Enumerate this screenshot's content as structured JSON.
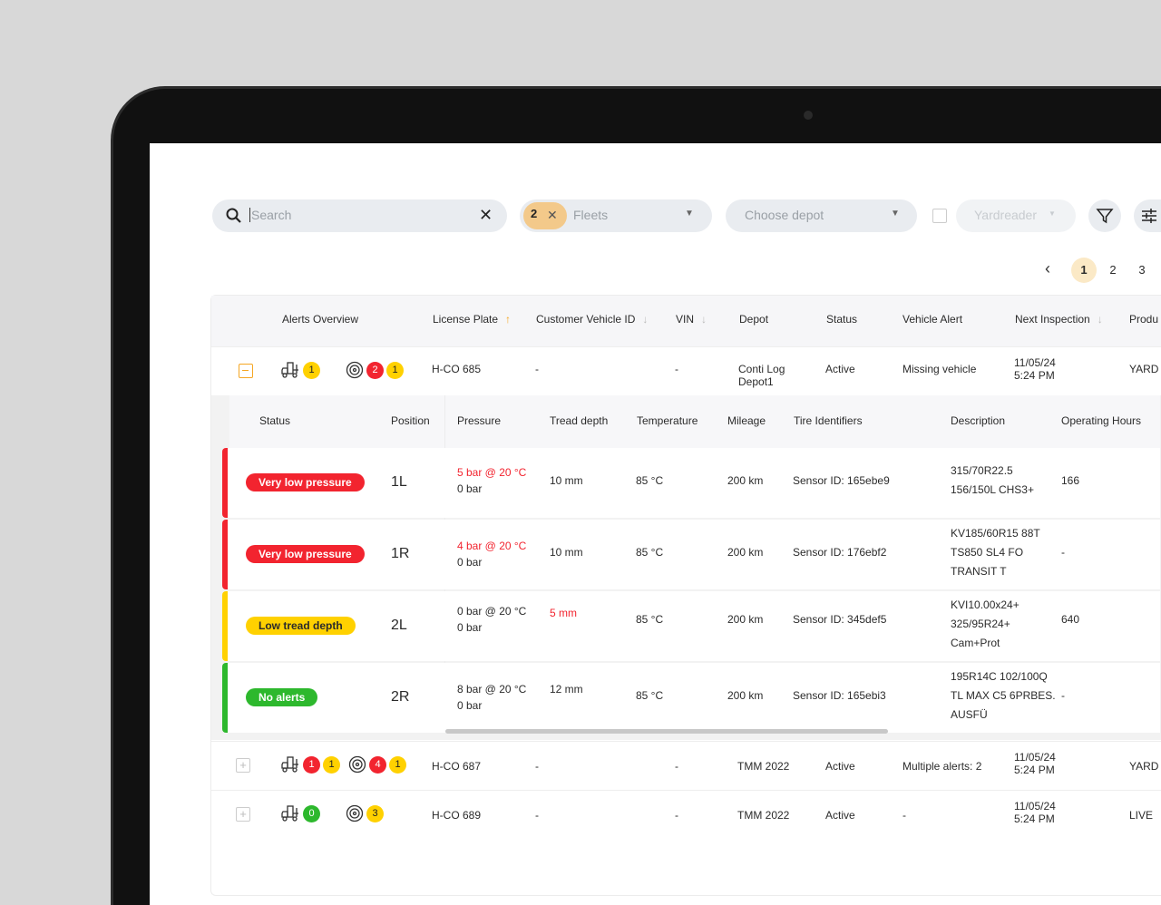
{
  "toolbar": {
    "search_placeholder": "Search",
    "fleets_count": "2",
    "fleets_label": "Fleets",
    "depot_placeholder": "Choose depot",
    "yardreader_label": "Yardreader"
  },
  "pagination": {
    "pages": [
      "1",
      "2",
      "3"
    ],
    "current": "1"
  },
  "colors": {
    "red": "#f2242f",
    "yellow": "#ffd100",
    "green": "#2db82d",
    "accent": "#f5a623"
  },
  "columns": [
    "Alerts Overview",
    "License Plate",
    "Customer Vehicle ID",
    "VIN",
    "Depot",
    "Status",
    "Vehicle Alert",
    "Next Inspection",
    "Produ"
  ],
  "sub_columns": [
    "Status",
    "Position",
    "Pressure",
    "Tread depth",
    "Temperature",
    "Mileage",
    "Tire Identifiers",
    "Description",
    "Operating Hours"
  ],
  "vehicles": [
    {
      "expanded": true,
      "vehicle_badges": [
        {
          "v": "1",
          "c": "yel"
        }
      ],
      "tire_badges": [
        {
          "v": "2",
          "c": "red"
        },
        {
          "v": "1",
          "c": "yel"
        }
      ],
      "plate": "H-CO 685",
      "cust_id": "-",
      "vin": "-",
      "depot": "Conti Log\nDepot1",
      "status": "Active",
      "alert": "Missing vehicle",
      "inspection_date": "11/05/24",
      "inspection_time": "5:24 PM",
      "product": "YARD"
    },
    {
      "expanded": false,
      "vehicle_badges": [
        {
          "v": "1",
          "c": "red"
        },
        {
          "v": "1",
          "c": "yel"
        }
      ],
      "tire_badges": [
        {
          "v": "4",
          "c": "red"
        },
        {
          "v": "1",
          "c": "yel"
        }
      ],
      "plate": "H-CO 687",
      "cust_id": "-",
      "vin": "-",
      "depot": "TMM 2022",
      "status": "Active",
      "alert": "Multiple alerts: 2",
      "inspection_date": "11/05/24",
      "inspection_time": "5:24 PM",
      "product": "YARD"
    },
    {
      "expanded": false,
      "vehicle_badges": [
        {
          "v": "0",
          "c": "grn"
        }
      ],
      "tire_badges": [
        {
          "v": "3",
          "c": "yel"
        }
      ],
      "plate": "H-CO 689",
      "cust_id": "-",
      "vin": "-",
      "depot": "TMM 2022",
      "status": "Active",
      "alert": "-",
      "inspection_date": "11/05/24",
      "inspection_time": "5:24 PM",
      "product": "LIVE"
    }
  ],
  "tires": [
    {
      "status": "Very low pressure",
      "level": "red",
      "position": "1L",
      "pressure": "5 bar @ 20 °C",
      "pressure_alert": true,
      "pressure2": "0 bar",
      "tread": "10 mm",
      "tread_alert": false,
      "temp": "85 °C",
      "mileage": "200 km",
      "sensor": "Sensor ID: 165ebe9",
      "description": [
        "315/70R22.5",
        "156/150L CHS3+"
      ],
      "hours": "166"
    },
    {
      "status": "Very low pressure",
      "level": "red",
      "position": "1R",
      "pressure": "4 bar @ 20 °C",
      "pressure_alert": true,
      "pressure2": "0 bar",
      "tread": "10 mm",
      "tread_alert": false,
      "temp": "85 °C",
      "mileage": "200 km",
      "sensor": "Sensor ID: 176ebf2",
      "description": [
        "KV185/60R15 88T",
        "TS850 SL4 FO",
        "TRANSIT T"
      ],
      "hours": "-"
    },
    {
      "status": "Low tread depth",
      "level": "yel",
      "position": "2L",
      "pressure": "0 bar @ 20 °C",
      "pressure_alert": false,
      "pressure2": "0 bar",
      "tread": "5 mm",
      "tread_alert": true,
      "temp": "85 °C",
      "mileage": "200 km",
      "sensor": "Sensor ID: 345def5",
      "description": [
        "KVI10.00x24+",
        "325/95R24+",
        "Cam+Prot"
      ],
      "hours": "640"
    },
    {
      "status": "No alerts",
      "level": "grn",
      "position": "2R",
      "pressure": "8 bar @ 20 °C",
      "pressure_alert": false,
      "pressure2": "0 bar",
      "tread": "12 mm",
      "tread_alert": false,
      "temp": "85 °C",
      "mileage": "200 km",
      "sensor": "Sensor ID: 165ebi3",
      "description": [
        "195R14C 102/100Q",
        "TL MAX C5 6PRBES.",
        "AUSFÜ"
      ],
      "hours": "-"
    }
  ]
}
